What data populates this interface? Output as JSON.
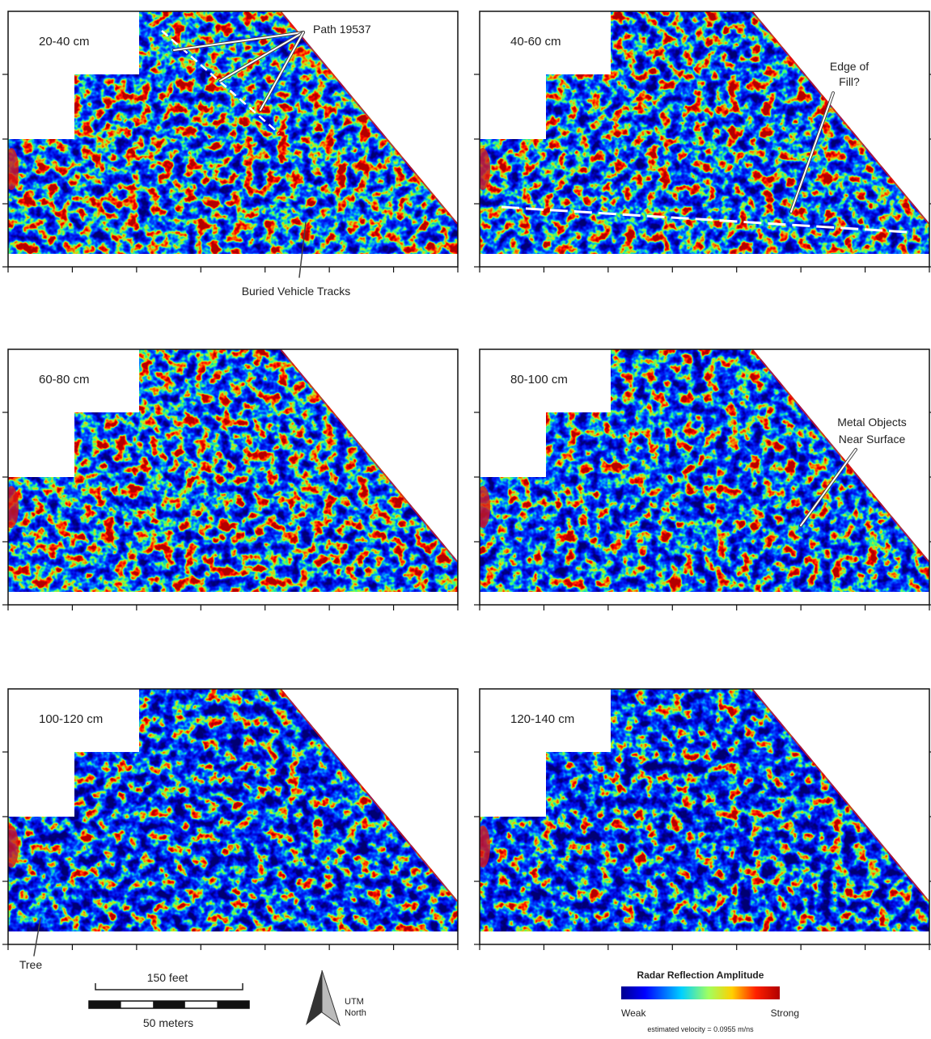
{
  "panels": [
    {
      "label": "20-40 cm"
    },
    {
      "label": "40-60 cm"
    },
    {
      "label": "60-80 cm"
    },
    {
      "label": "80-100 cm"
    },
    {
      "label": "100-120 cm"
    },
    {
      "label": "120-140 cm"
    }
  ],
  "annotations": {
    "path": "Path 19537",
    "tracks": "Buried Vehicle Tracks",
    "fill": [
      "Edge of",
      "Fill?"
    ],
    "metal": [
      "Metal Objects",
      "Near Surface"
    ],
    "tree": "Tree"
  },
  "scale_bar": {
    "feet": "150 feet",
    "meters": "50 meters"
  },
  "north_arrow": [
    "UTM",
    "North"
  ],
  "legend": {
    "title": "Radar Reflection Amplitude",
    "low": "Weak",
    "high": "Strong",
    "note": "estimated velocity = 0.0955 m/ns"
  }
}
